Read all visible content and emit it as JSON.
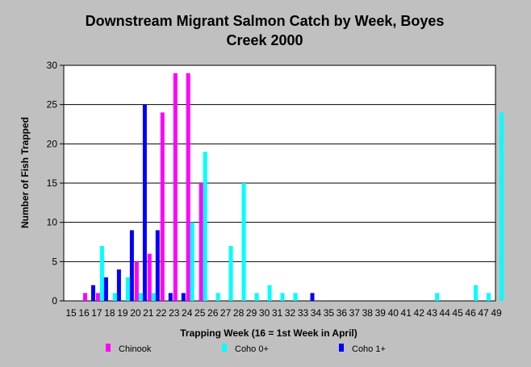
{
  "chart_data": {
    "type": "bar",
    "title_line1": "Downstream Migrant Salmon Catch by Week, Boyes",
    "title_line2": "Creek 2000",
    "xlabel": "Trapping Week (16 = 1st Week in April)",
    "ylabel": "Number of Fish Trapped",
    "ylim": [
      0,
      30
    ],
    "yticks": [
      0,
      5,
      10,
      15,
      20,
      25,
      30
    ],
    "grid": true,
    "legend_position": "bottom",
    "categories": [
      "15",
      "16",
      "17",
      "18",
      "19",
      "20",
      "21",
      "22",
      "23",
      "24",
      "25",
      "26",
      "27",
      "28",
      "29",
      "30",
      "31",
      "32",
      "33",
      "34",
      "35",
      "36",
      "37",
      "38",
      "39",
      "40",
      "41",
      "42",
      "43",
      "44",
      "45",
      "46",
      "47",
      "49"
    ],
    "series": [
      {
        "name": "Chinook",
        "color": "#ff00ff",
        "values": [
          0,
          1,
          1,
          0,
          0,
          5,
          6,
          24,
          29,
          29,
          15,
          0,
          0,
          0,
          0,
          0,
          0,
          0,
          0,
          0,
          0,
          0,
          0,
          0,
          0,
          0,
          0,
          0,
          0,
          0,
          0,
          0,
          0,
          0
        ]
      },
      {
        "name": "Coho 0+",
        "color": "#00ffff",
        "values": [
          0,
          0,
          7,
          1,
          3,
          1,
          1,
          0,
          0,
          10,
          19,
          1,
          7,
          15,
          1,
          2,
          1,
          1,
          0,
          0,
          0,
          0,
          0,
          0,
          0,
          0,
          0,
          0,
          1,
          0,
          0,
          2,
          1,
          24
        ]
      },
      {
        "name": "Coho 1+",
        "color": "#0000ff",
        "values": [
          0,
          2,
          3,
          4,
          9,
          25,
          9,
          1,
          1,
          0,
          0,
          0,
          0,
          0,
          0,
          0,
          0,
          0,
          1,
          0,
          0,
          0,
          0,
          0,
          0,
          0,
          0,
          0,
          0,
          0,
          0,
          0,
          0,
          0
        ]
      }
    ]
  }
}
